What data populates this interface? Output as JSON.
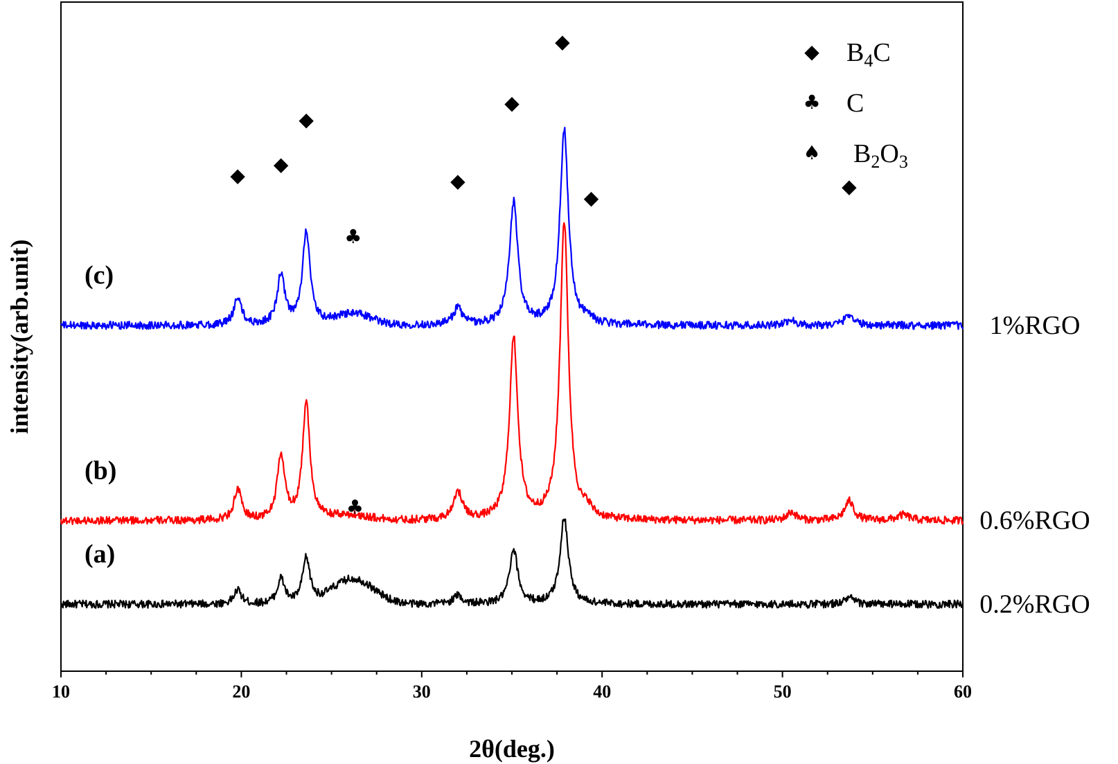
{
  "chart_data": {
    "type": "line",
    "title": "",
    "xlabel": "2θ(deg.)",
    "ylabel": "intensity(arb.unit)",
    "xlim": [
      10,
      60
    ],
    "x_ticks": [
      10,
      20,
      30,
      40,
      50,
      60
    ],
    "y_ticks_shown": false,
    "grid": false,
    "legend": {
      "position": "top-right",
      "entries": [
        {
          "marker": "diamond",
          "glyph": "◆",
          "text": "B",
          "sub": "4",
          "text2": "C",
          "sub2": ""
        },
        {
          "marker": "club",
          "glyph": "♣",
          "text": "C",
          "sub": "",
          "text2": "",
          "sub2": ""
        },
        {
          "marker": "spade",
          "glyph": "♠",
          "text": "B",
          "sub": "2",
          "text2": "O",
          "sub2": "3"
        }
      ]
    },
    "series": [
      {
        "tag": "(a)",
        "name": "0.2%RGO",
        "color": "#000000",
        "baseline": 0.0,
        "noise": 0.7,
        "hump": {
          "x": 26.2,
          "height": 4.5,
          "width": 1.6
        },
        "peaks": [
          {
            "x": 19.8,
            "height": 2.5,
            "width": 0.25
          },
          {
            "x": 22.2,
            "height": 4.5,
            "width": 0.25
          },
          {
            "x": 23.6,
            "height": 8.0,
            "width": 0.25
          },
          {
            "x": 32.0,
            "height": 1.5,
            "width": 0.3
          },
          {
            "x": 35.1,
            "height": 9.5,
            "width": 0.28
          },
          {
            "x": 37.9,
            "height": 15.5,
            "width": 0.28
          },
          {
            "x": 53.7,
            "height": 1.2,
            "width": 0.3
          }
        ]
      },
      {
        "tag": "(b)",
        "name": "0.6%RGO",
        "color": "#ff0000",
        "baseline": 15.0,
        "noise": 0.7,
        "hump": {
          "x": 26.0,
          "height": 0.8,
          "width": 1.5
        },
        "peaks": [
          {
            "x": 19.8,
            "height": 5.5,
            "width": 0.25
          },
          {
            "x": 22.2,
            "height": 11.5,
            "width": 0.25
          },
          {
            "x": 23.6,
            "height": 21.0,
            "width": 0.25
          },
          {
            "x": 32.0,
            "height": 5.0,
            "width": 0.3
          },
          {
            "x": 35.1,
            "height": 32.5,
            "width": 0.28
          },
          {
            "x": 37.9,
            "height": 53.5,
            "width": 0.28
          },
          {
            "x": 39.2,
            "height": 1.5,
            "width": 0.25
          },
          {
            "x": 50.5,
            "height": 1.5,
            "width": 0.3
          },
          {
            "x": 53.7,
            "height": 3.5,
            "width": 0.3
          },
          {
            "x": 56.7,
            "height": 1.0,
            "width": 0.4
          }
        ]
      },
      {
        "tag": "(c)",
        "name": "1%RGO",
        "color": "#0000ff",
        "baseline": 50.0,
        "noise": 0.7,
        "hump": {
          "x": 26.2,
          "height": 2.0,
          "width": 1.4
        },
        "peaks": [
          {
            "x": 19.8,
            "height": 5.0,
            "width": 0.25
          },
          {
            "x": 22.2,
            "height": 9.0,
            "width": 0.25
          },
          {
            "x": 23.6,
            "height": 17.0,
            "width": 0.25
          },
          {
            "x": 32.0,
            "height": 3.0,
            "width": 0.3
          },
          {
            "x": 35.1,
            "height": 22.0,
            "width": 0.28
          },
          {
            "x": 37.9,
            "height": 35.0,
            "width": 0.28
          },
          {
            "x": 39.2,
            "height": 1.2,
            "width": 0.25
          },
          {
            "x": 50.5,
            "height": 1.0,
            "width": 0.3
          },
          {
            "x": 53.7,
            "height": 2.0,
            "width": 0.3
          }
        ]
      }
    ],
    "annotations": [
      {
        "marker": "diamond",
        "glyph": "◆",
        "x": 19.8,
        "y": 77.0
      },
      {
        "marker": "diamond",
        "glyph": "◆",
        "x": 22.2,
        "y": 79.0
      },
      {
        "marker": "diamond",
        "glyph": "◆",
        "x": 23.6,
        "y": 87.0
      },
      {
        "marker": "club",
        "glyph": "♣",
        "x": 26.2,
        "y": 66.0
      },
      {
        "marker": "diamond",
        "glyph": "◆",
        "x": 32.0,
        "y": 76.0
      },
      {
        "marker": "diamond",
        "glyph": "◆",
        "x": 35.0,
        "y": 90.0
      },
      {
        "marker": "diamond",
        "glyph": "◆",
        "x": 37.8,
        "y": 101.0
      },
      {
        "marker": "diamond",
        "glyph": "◆",
        "x": 39.4,
        "y": 73.0
      },
      {
        "marker": "diamond",
        "glyph": "◆",
        "x": 53.7,
        "y": 75.0
      },
      {
        "marker": "club",
        "glyph": "♣",
        "x": 26.3,
        "y": 17.5
      }
    ]
  }
}
